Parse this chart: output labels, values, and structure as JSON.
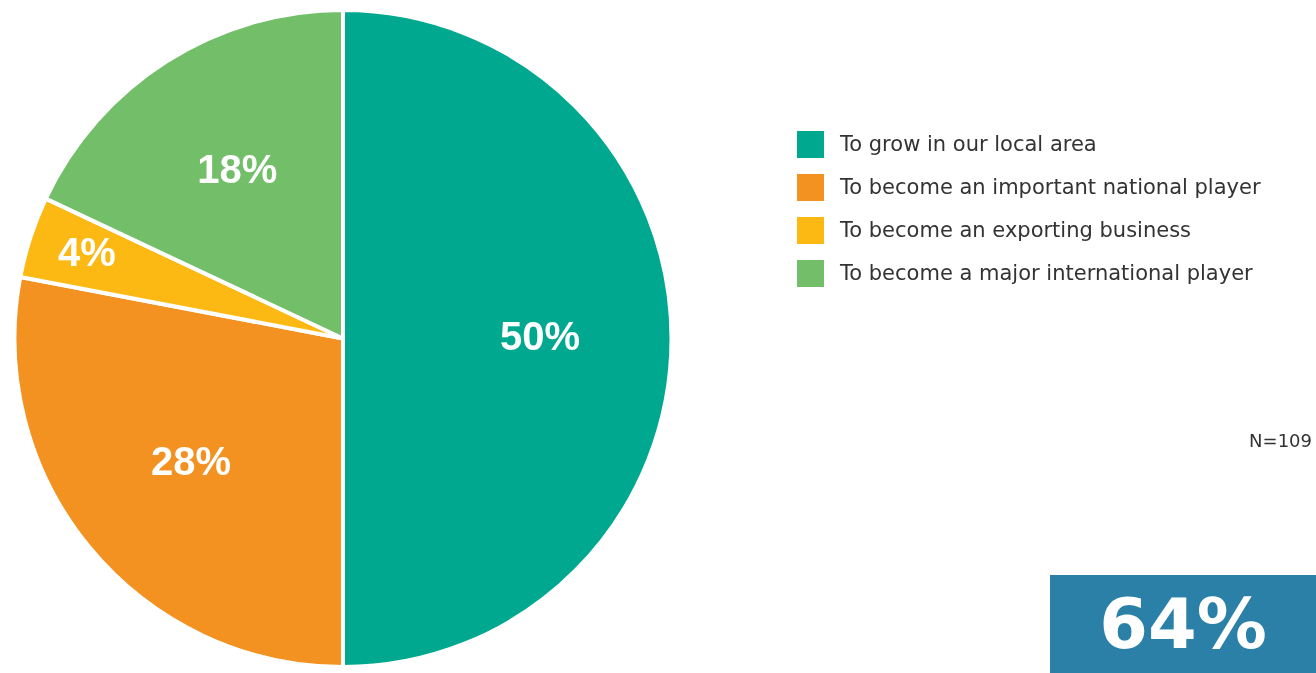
{
  "chart_data": {
    "type": "pie",
    "categories": [
      "To grow in our local area",
      "To become an important national player",
      "To become an exporting business",
      "To become a major international player"
    ],
    "values": [
      50,
      28,
      4,
      18
    ],
    "colors": [
      "#00a88f",
      "#f39220",
      "#fdb913",
      "#73bf69"
    ],
    "value_labels": [
      "50%",
      "28%",
      "4%",
      "18%"
    ],
    "legend": "right",
    "annotations": [
      "N=109",
      "64%"
    ]
  }
}
